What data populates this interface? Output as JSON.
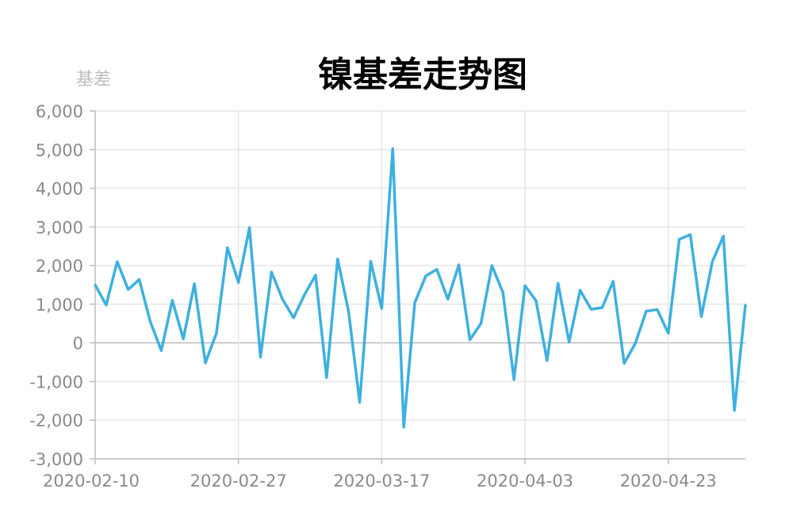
{
  "chart_data": {
    "type": "line",
    "title": "镍基差走势图",
    "ylabel": "基差",
    "xlabel": "",
    "ylim": [
      -3000,
      6000
    ],
    "yticks": [
      6000,
      5000,
      4000,
      3000,
      2000,
      1000,
      0,
      -1000,
      -2000,
      -3000
    ],
    "ytick_labels": [
      "6,000",
      "5,000",
      "4,000",
      "3,000",
      "2,000",
      "1,000",
      "0",
      "-1,000",
      "-2,000",
      "-3,000"
    ],
    "x_tick_labels": [
      "2020-02-10",
      "2020-02-27",
      "2020-03-17",
      "2020-04-03",
      "2020-04-23"
    ],
    "x_tick_indices": [
      0,
      13,
      26,
      39,
      52
    ],
    "grid": true,
    "line_color": "#3eb0e0",
    "series": [
      {
        "values": [
          1500,
          980,
          2100,
          1380,
          1640,
          550,
          -200,
          1100,
          100,
          1530,
          -520,
          250,
          2460,
          1560,
          2980,
          -370,
          1830,
          1130,
          650,
          1250,
          1750,
          -900,
          2170,
          800,
          -1540,
          2110,
          890,
          5020,
          -2180,
          1040,
          1730,
          1900,
          1130,
          2020,
          80,
          500,
          2000,
          1300,
          -950,
          1480,
          1090,
          -460,
          1540,
          20,
          1360,
          870,
          910,
          1590,
          -530,
          -20,
          820,
          860,
          250,
          2680,
          2800,
          680,
          2100,
          2760,
          -1750,
          980
        ]
      }
    ]
  }
}
